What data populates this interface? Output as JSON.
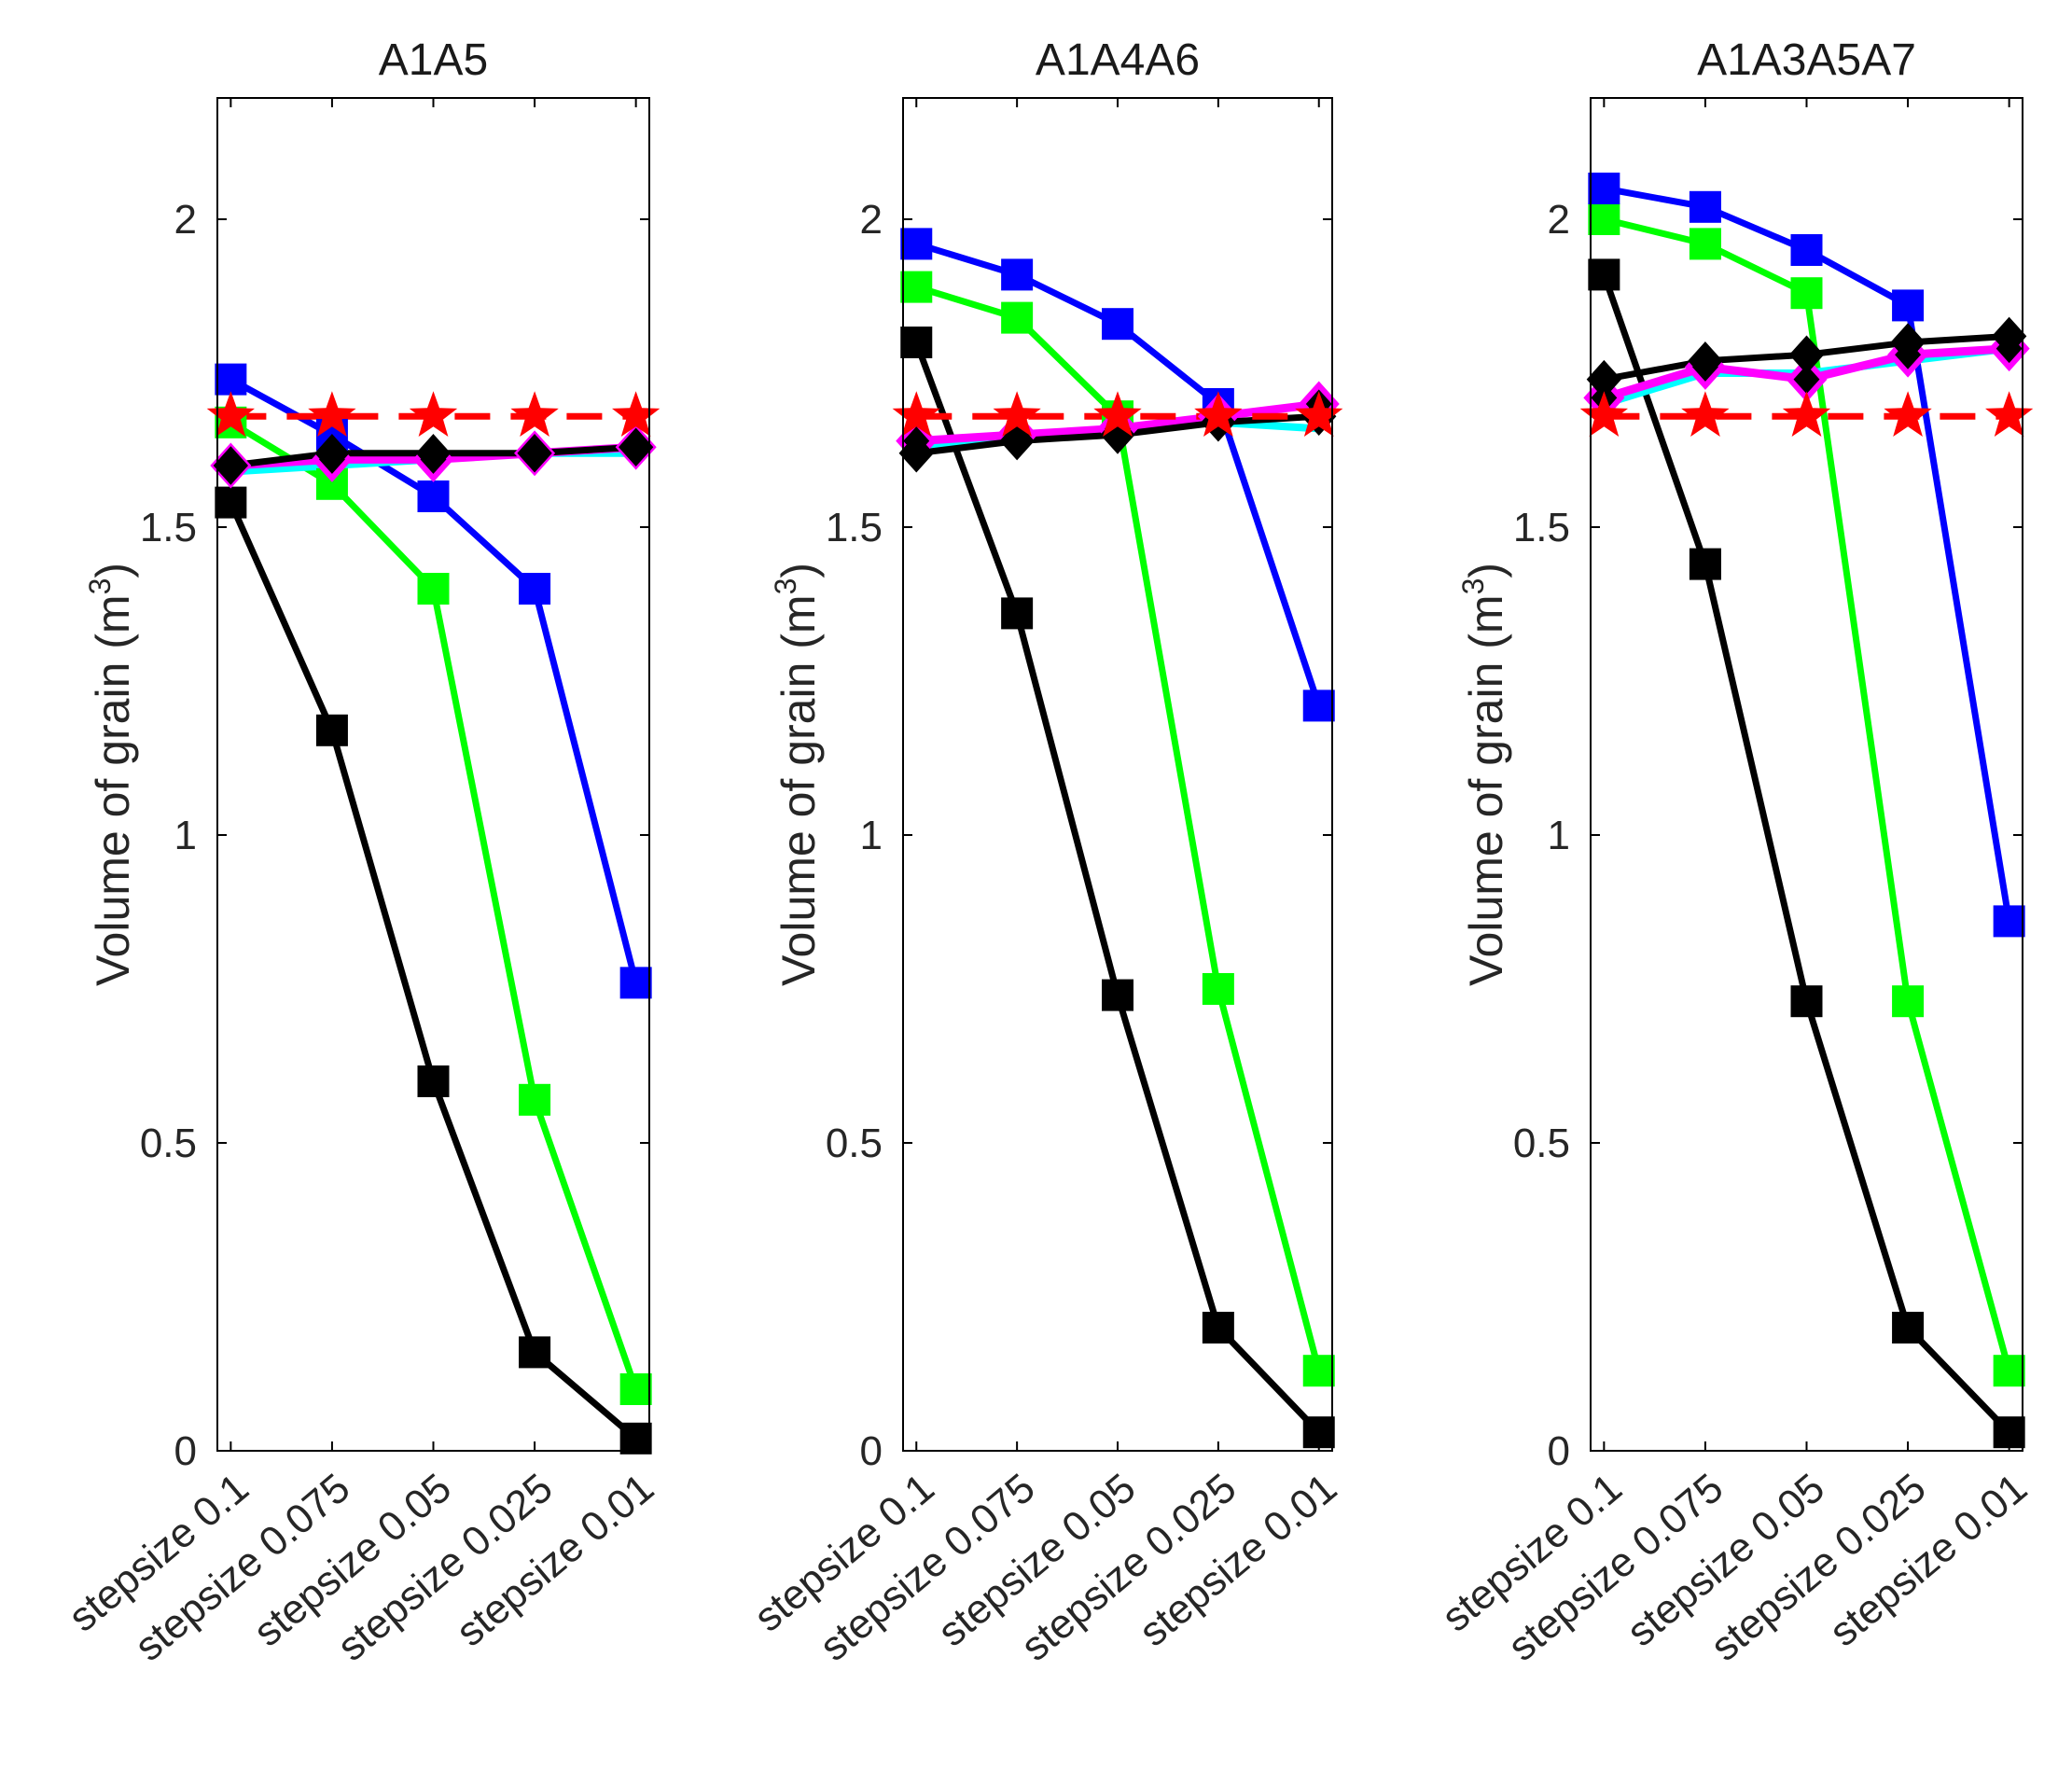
{
  "chart_data": [
    {
      "type": "line",
      "title": "A1A5",
      "ylabel": "Volume of grain (m",
      "ylabel_sup": "3",
      "ylabel_close": ")",
      "ylim": [
        0,
        2.2
      ],
      "yticks": [
        0,
        0.5,
        1,
        1.5,
        2
      ],
      "ytick_labels": [
        "0",
        "0.5",
        "1",
        "1.5",
        "2"
      ],
      "categories": [
        "stepsize 0.1",
        "stepsize 0.075",
        "stepsize 0.05",
        "stepsize 0.025",
        "stepsize 0.01"
      ],
      "series": [
        {
          "name": "reference",
          "color": "#ff0000",
          "marker": "star",
          "dashed": true,
          "values": [
            1.68,
            1.68,
            1.68,
            1.68,
            1.68
          ]
        },
        {
          "name": "blue",
          "color": "#0000ff",
          "marker": "square",
          "values": [
            1.74,
            1.65,
            1.55,
            1.4,
            0.76
          ]
        },
        {
          "name": "green",
          "color": "#00ff00",
          "marker": "square",
          "values": [
            1.67,
            1.57,
            1.4,
            0.57,
            0.1
          ]
        },
        {
          "name": "black-square",
          "color": "#000000",
          "marker": "square",
          "values": [
            1.54,
            1.17,
            0.6,
            0.16,
            0.02
          ]
        },
        {
          "name": "cyan",
          "color": "#00ffff",
          "marker": "none",
          "values": [
            1.59,
            1.6,
            1.61,
            1.62,
            1.62
          ]
        },
        {
          "name": "magenta",
          "color": "#ff00ff",
          "marker": "diamond",
          "values": [
            1.6,
            1.61,
            1.61,
            1.62,
            1.63
          ]
        },
        {
          "name": "black-diamond",
          "color": "#000000",
          "marker": "diamond",
          "values": [
            1.6,
            1.62,
            1.62,
            1.62,
            1.63
          ]
        }
      ]
    },
    {
      "type": "line",
      "title": "A1A4A6",
      "ylabel": "Volume of grain (m",
      "ylabel_sup": "3",
      "ylabel_close": ")",
      "ylim": [
        0,
        2.2
      ],
      "yticks": [
        0,
        0.5,
        1,
        1.5,
        2
      ],
      "ytick_labels": [
        "0",
        "0.5",
        "1",
        "1.5",
        "2"
      ],
      "categories": [
        "stepsize 0.1",
        "stepsize 0.075",
        "stepsize 0.05",
        "stepsize 0.025",
        "stepsize 0.01"
      ],
      "series": [
        {
          "name": "reference",
          "color": "#ff0000",
          "marker": "star",
          "dashed": true,
          "values": [
            1.68,
            1.68,
            1.68,
            1.68,
            1.68
          ]
        },
        {
          "name": "blue",
          "color": "#0000ff",
          "marker": "square",
          "values": [
            1.96,
            1.91,
            1.83,
            1.7,
            1.21
          ]
        },
        {
          "name": "green",
          "color": "#00ff00",
          "marker": "square",
          "values": [
            1.89,
            1.84,
            1.68,
            0.75,
            0.13
          ]
        },
        {
          "name": "black-square",
          "color": "#000000",
          "marker": "square",
          "values": [
            1.8,
            1.36,
            0.74,
            0.2,
            0.03
          ]
        },
        {
          "name": "cyan",
          "color": "#00ffff",
          "marker": "none",
          "values": [
            1.63,
            1.65,
            1.66,
            1.67,
            1.66
          ]
        },
        {
          "name": "magenta",
          "color": "#ff00ff",
          "marker": "diamond",
          "values": [
            1.64,
            1.65,
            1.66,
            1.68,
            1.7
          ]
        },
        {
          "name": "black-diamond",
          "color": "#000000",
          "marker": "diamond",
          "values": [
            1.62,
            1.64,
            1.65,
            1.67,
            1.68
          ]
        }
      ]
    },
    {
      "type": "line",
      "title": "A1A3A5A7",
      "ylabel": "Volume of grain (m",
      "ylabel_sup": "3",
      "ylabel_close": ")",
      "ylim": [
        0,
        2.2
      ],
      "yticks": [
        0,
        0.5,
        1,
        1.5,
        2
      ],
      "ytick_labels": [
        "0",
        "0.5",
        "1",
        "1.5",
        "2"
      ],
      "categories": [
        "stepsize 0.1",
        "stepsize 0.075",
        "stepsize 0.05",
        "stepsize 0.025",
        "stepsize 0.01"
      ],
      "series": [
        {
          "name": "reference",
          "color": "#ff0000",
          "marker": "star",
          "dashed": true,
          "values": [
            1.68,
            1.68,
            1.68,
            1.68,
            1.68
          ]
        },
        {
          "name": "blue",
          "color": "#0000ff",
          "marker": "square",
          "values": [
            2.05,
            2.02,
            1.95,
            1.86,
            0.86
          ]
        },
        {
          "name": "green",
          "color": "#00ff00",
          "marker": "square",
          "values": [
            2.0,
            1.96,
            1.88,
            0.73,
            0.13
          ]
        },
        {
          "name": "black-square",
          "color": "#000000",
          "marker": "square",
          "values": [
            1.91,
            1.44,
            0.73,
            0.2,
            0.03
          ]
        },
        {
          "name": "cyan",
          "color": "#00ffff",
          "marker": "none",
          "values": [
            1.7,
            1.75,
            1.75,
            1.77,
            1.79
          ]
        },
        {
          "name": "magenta",
          "color": "#ff00ff",
          "marker": "diamond",
          "values": [
            1.71,
            1.76,
            1.74,
            1.78,
            1.79
          ]
        },
        {
          "name": "black-diamond",
          "color": "#000000",
          "marker": "diamond",
          "values": [
            1.74,
            1.77,
            1.78,
            1.8,
            1.81
          ]
        }
      ]
    }
  ]
}
